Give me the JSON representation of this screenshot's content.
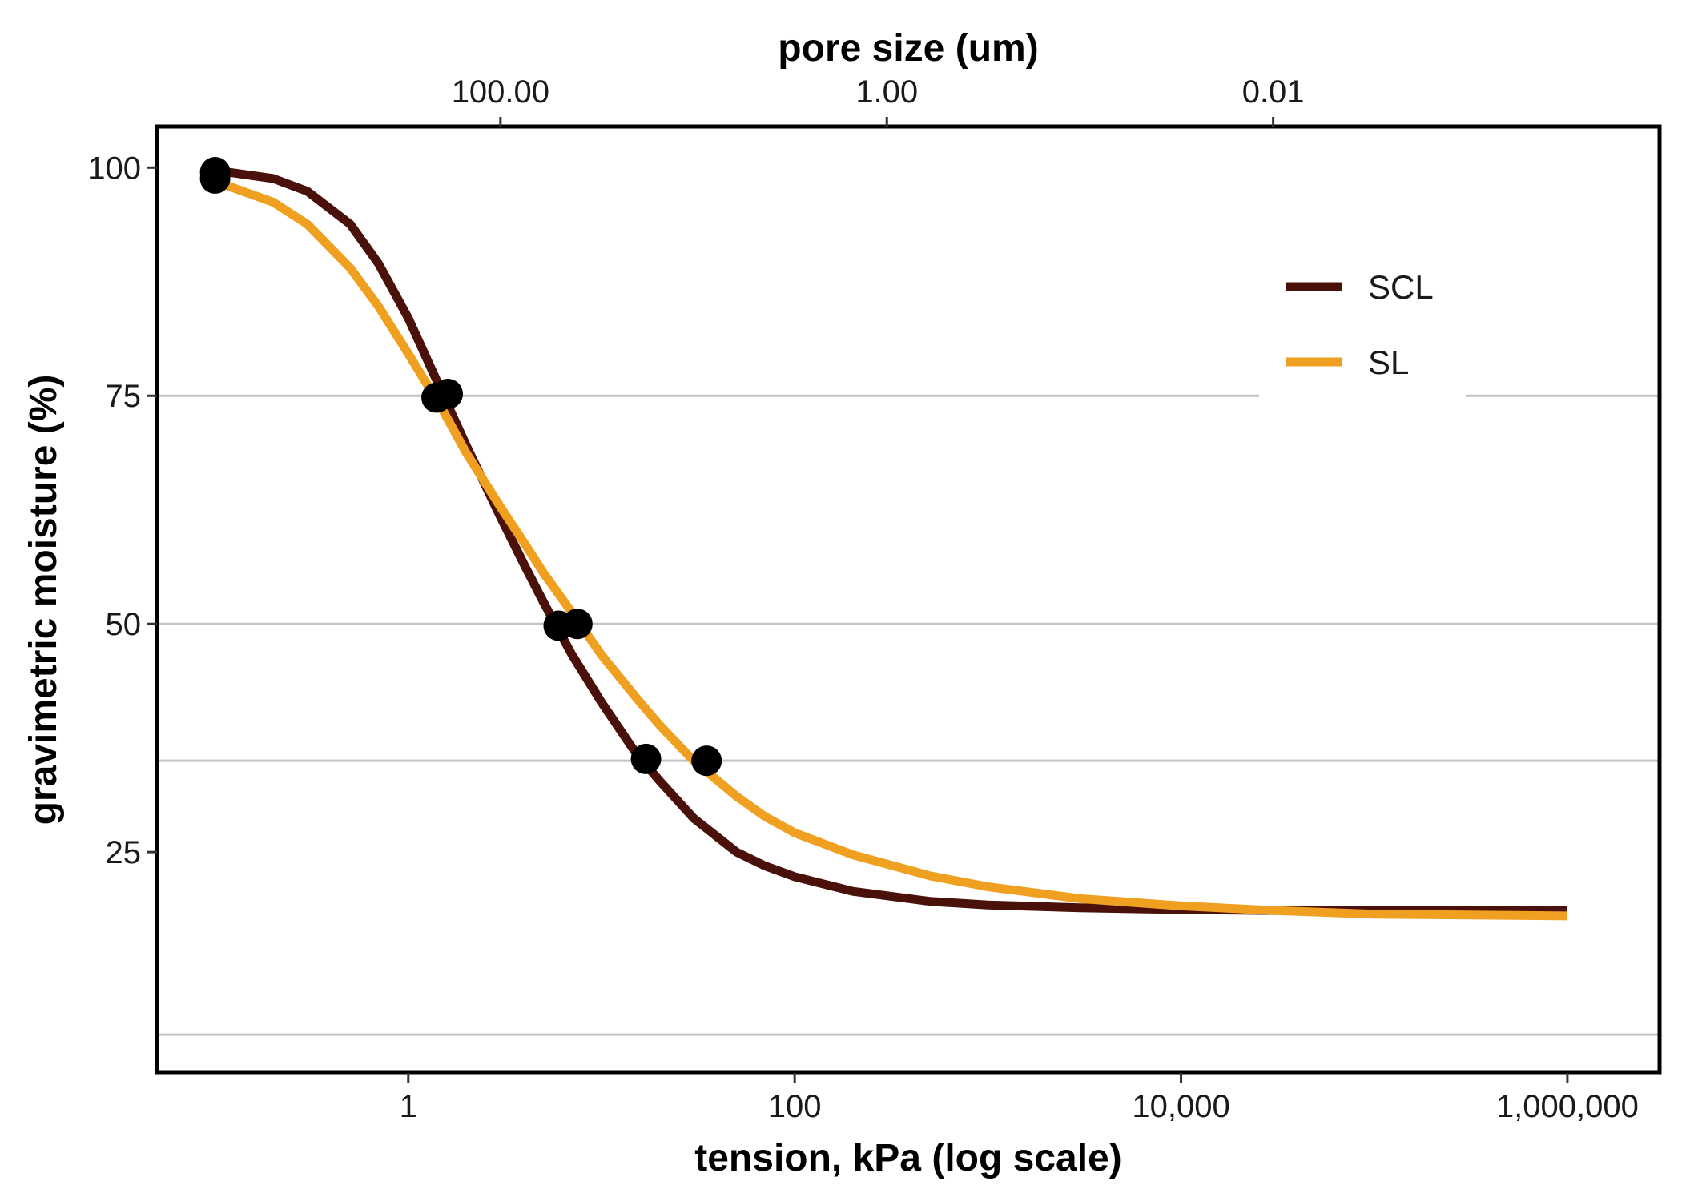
{
  "chart_data": {
    "type": "line",
    "xlabel": "tension, kPa (log scale)",
    "ylabel": "gravimetric moisture (%)",
    "x2label": "pore size (um)",
    "x_scale": "log",
    "x_ticks": [
      {
        "value": 1,
        "label": "1"
      },
      {
        "value": 100,
        "label": "100"
      },
      {
        "value": 10000,
        "label": "10,000"
      },
      {
        "value": 1000000,
        "label": "1,000,000"
      }
    ],
    "x2_ticks": [
      {
        "tension": 3,
        "label": "100.00"
      },
      {
        "tension": 300,
        "label": "1.00"
      },
      {
        "tension": 30000,
        "label": "0.01"
      }
    ],
    "y_ticks": [
      {
        "value": 25,
        "label": "25"
      },
      {
        "value": 50,
        "label": "50"
      },
      {
        "value": 75,
        "label": "75"
      },
      {
        "value": 100,
        "label": "100"
      }
    ],
    "xlim": [
      0.05,
      3000000
    ],
    "ylim": [
      0.8,
      104.5
    ],
    "gridlines_y": [
      5,
      35,
      50,
      75
    ],
    "legend_position": "top-right",
    "series": [
      {
        "name": "SCL",
        "color": "#4a100a",
        "x": [
          0.1,
          0.2,
          0.3,
          0.5,
          0.7,
          1,
          1.5,
          2,
          3,
          4,
          5,
          7,
          10,
          15,
          20,
          30,
          50,
          70,
          100,
          200,
          500,
          1000,
          3000,
          10000,
          30000,
          100000,
          1000000
        ],
        "y": [
          99.7,
          98.8,
          97.4,
          93.8,
          89.5,
          83.5,
          75.3,
          69.5,
          61.7,
          56.4,
          52.4,
          46.7,
          41.4,
          35.9,
          32.8,
          28.7,
          25.0,
          23.5,
          22.3,
          20.7,
          19.6,
          19.2,
          18.9,
          18.7,
          18.6,
          18.6,
          18.6
        ],
        "points_x": [
          0.1,
          1.6,
          6,
          17
        ],
        "points_y": [
          99.5,
          75.2,
          49.8,
          35.2
        ]
      },
      {
        "name": "SL",
        "color": "#f0a020",
        "x": [
          0.1,
          0.2,
          0.3,
          0.5,
          0.7,
          1,
          1.5,
          2,
          3,
          4,
          5,
          7,
          10,
          15,
          20,
          30,
          50,
          70,
          100,
          200,
          500,
          1000,
          3000,
          10000,
          30000,
          100000,
          1000000
        ],
        "y": [
          98.5,
          96.2,
          93.8,
          89.0,
          84.8,
          79.6,
          73.5,
          68.7,
          62.8,
          58.8,
          55.6,
          51.3,
          46.6,
          42.0,
          38.9,
          35.0,
          31.1,
          28.9,
          27.1,
          24.7,
          22.4,
          21.2,
          19.9,
          19.1,
          18.6,
          18.2,
          18.0
        ],
        "points_x": [
          0.1,
          1.4,
          7.5,
          35
        ],
        "points_y": [
          98.8,
          74.8,
          50.0,
          35.0
        ]
      }
    ]
  }
}
